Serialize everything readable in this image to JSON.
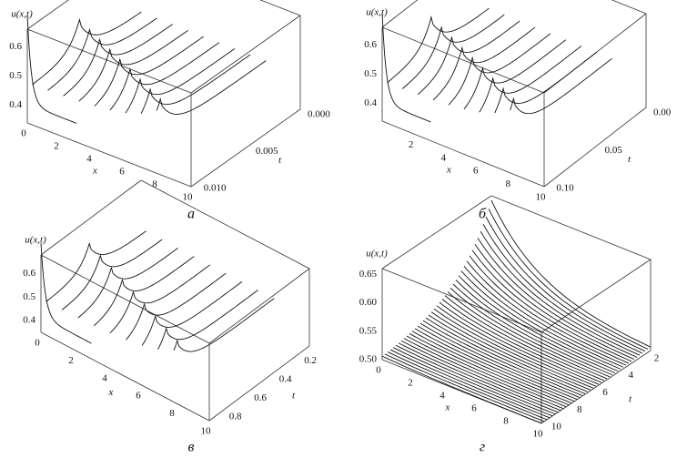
{
  "panels": [
    {
      "caption": "а",
      "z_label": "u(x,t)",
      "x_label": "x",
      "t_label": "t",
      "z_ticks": [
        "0.6",
        "0.5",
        "0.4"
      ],
      "x_ticks": [
        "0",
        "2",
        "4",
        "6",
        "8",
        "10"
      ],
      "t_ticks": [
        "0.000",
        "0.005",
        "0.010"
      ],
      "zlim": [
        0.34,
        0.66
      ],
      "xlim": [
        0,
        10
      ],
      "tlim": [
        0,
        0.0105
      ]
    },
    {
      "caption": "б",
      "z_label": "u(x,t)",
      "x_label": "x",
      "t_label": "t",
      "z_ticks": [
        "0.6",
        "0.5",
        "0.4"
      ],
      "x_ticks": [
        "2",
        "4",
        "6",
        "8",
        "10"
      ],
      "t_ticks": [
        "0.00",
        "0.05",
        "0.10"
      ],
      "zlim": [
        0.34,
        0.66
      ],
      "xlim": [
        0,
        10
      ],
      "tlim": [
        0,
        0.105
      ]
    },
    {
      "caption": "в",
      "z_label": "u(x,t)",
      "x_label": "x",
      "t_label": "t",
      "z_ticks": [
        "0.6",
        "0.5",
        "0.4"
      ],
      "x_ticks": [
        "0",
        "2",
        "4",
        "6",
        "8",
        "10"
      ],
      "t_ticks": [
        "0.2",
        "0.4",
        "0.6",
        "0.8"
      ],
      "zlim": [
        0.35,
        0.68
      ],
      "xlim": [
        0,
        10
      ],
      "tlim": [
        0.1,
        0.9
      ]
    },
    {
      "caption": "г",
      "z_label": "u(x,t)",
      "x_label": "x",
      "t_label": "t",
      "z_ticks": [
        "0.50",
        "0.55",
        "0.60",
        "0.65"
      ],
      "x_ticks": [
        "0",
        "2",
        "4",
        "6",
        "8",
        "10"
      ],
      "t_ticks": [
        "2",
        "4",
        "6",
        "8",
        "10"
      ],
      "zlim": [
        0.5,
        0.66
      ],
      "xlim": [
        0,
        10
      ],
      "tlim": [
        1.7,
        10.2
      ]
    }
  ]
}
